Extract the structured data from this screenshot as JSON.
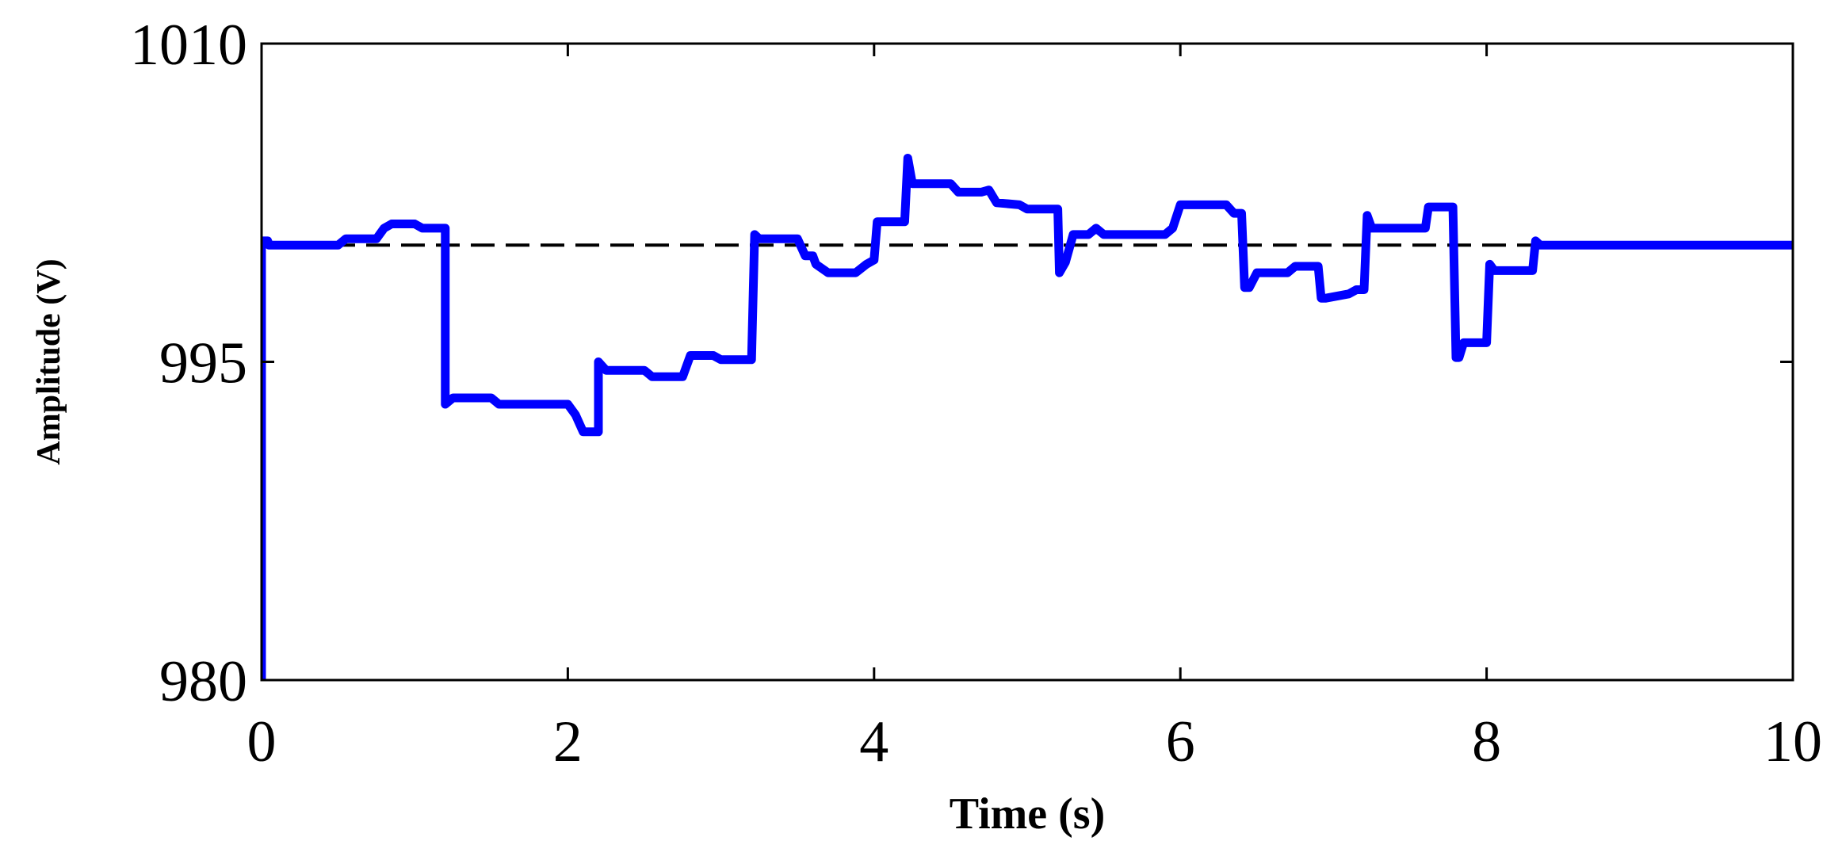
{
  "chart_data": {
    "type": "line",
    "title": "",
    "xlabel": "Time (s)",
    "ylabel": "Amplitude (V)",
    "xlim": [
      0,
      10
    ],
    "ylim": [
      980,
      1010
    ],
    "xticks": [
      0,
      2,
      4,
      6,
      8,
      10
    ],
    "yticks": [
      980,
      995,
      1010
    ],
    "grid": false,
    "reference_line": {
      "y": 1000.5,
      "style": "dashed",
      "color": "#000000"
    },
    "series": [
      {
        "color": "#0000ff",
        "x": [
          0.0,
          0.0,
          0.04,
          0.05,
          0.1,
          0.5,
          0.55,
          0.75,
          0.8,
          0.85,
          1.0,
          1.05,
          1.2,
          1.2,
          1.25,
          1.28,
          1.5,
          1.55,
          1.75,
          2.0,
          2.05,
          2.1,
          2.2,
          2.2,
          2.25,
          2.5,
          2.55,
          2.75,
          2.8,
          2.82,
          2.95,
          3.0,
          3.2,
          3.22,
          3.25,
          3.5,
          3.55,
          3.6,
          3.62,
          3.7,
          3.8,
          3.88,
          3.95,
          4.0,
          4.02,
          4.05,
          4.2,
          4.22,
          4.25,
          4.5,
          4.55,
          4.7,
          4.75,
          4.8,
          4.95,
          5.0,
          5.15,
          5.2,
          5.21,
          5.25,
          5.3,
          5.4,
          5.45,
          5.5,
          5.9,
          5.95,
          6.0,
          6.3,
          6.35,
          6.4,
          6.42,
          6.45,
          6.5,
          6.7,
          6.75,
          6.9,
          6.92,
          6.95,
          7.1,
          7.15,
          7.2,
          7.22,
          7.25,
          7.5,
          7.55,
          7.6,
          7.62,
          7.65,
          7.75,
          7.78,
          7.8,
          7.82,
          7.85,
          8.0,
          8.02,
          8.05,
          8.3,
          8.32,
          8.35,
          10.0
        ],
        "y": [
          980.0,
          1000.7,
          1000.7,
          1000.5,
          1000.5,
          1000.5,
          1000.8,
          1000.8,
          1001.3,
          1001.5,
          1001.5,
          1001.3,
          1001.3,
          993.0,
          993.3,
          993.3,
          993.3,
          993.0,
          993.0,
          993.0,
          992.5,
          991.7,
          991.7,
          995.0,
          994.6,
          994.6,
          994.3,
          994.3,
          995.3,
          995.3,
          995.3,
          995.1,
          995.1,
          1001.0,
          1000.8,
          1000.8,
          1000.0,
          1000.0,
          999.6,
          999.2,
          999.2,
          999.2,
          999.6,
          999.8,
          1001.6,
          1001.6,
          1001.6,
          1004.6,
          1003.4,
          1003.4,
          1003.0,
          1003.0,
          1003.1,
          1002.5,
          1002.4,
          1002.2,
          1002.2,
          1002.2,
          999.2,
          999.7,
          1001.0,
          1001.0,
          1001.3,
          1001.0,
          1001.0,
          1001.3,
          1002.4,
          1002.4,
          1002.0,
          1002.0,
          998.5,
          998.5,
          999.2,
          999.2,
          999.5,
          999.5,
          998.0,
          998.0,
          998.2,
          998.4,
          998.4,
          1001.9,
          1001.3,
          1001.3,
          1001.3,
          1001.3,
          1002.3,
          1002.3,
          1002.3,
          1002.3,
          995.2,
          995.2,
          995.9,
          995.9,
          999.6,
          999.3,
          999.3,
          1000.7,
          1000.5,
          1000.5
        ]
      }
    ]
  }
}
